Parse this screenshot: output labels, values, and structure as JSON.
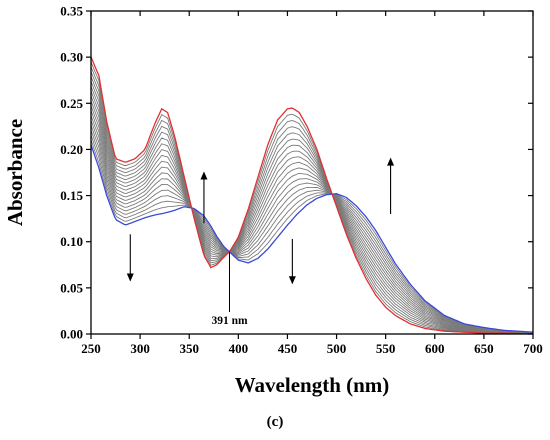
{
  "chart_data": {
    "type": "line",
    "title": "",
    "xlabel": "Wavelength (nm)",
    "ylabel": "Absorbance",
    "xlim": [
      250,
      700
    ],
    "ylim": [
      0.0,
      0.35
    ],
    "xticks": [
      "250",
      "300",
      "350",
      "400",
      "450",
      "500",
      "550",
      "600",
      "650",
      "700"
    ],
    "yticks": [
      "0.00",
      "0.05",
      "0.10",
      "0.15",
      "0.20",
      "0.25",
      "0.30",
      "0.35"
    ],
    "grid": false,
    "legend": "none",
    "series_count": 19,
    "series": [
      {
        "color": "#e03030",
        "x": [
          250,
          258,
          266,
          275,
          285,
          295,
          305,
          315,
          322,
          328,
          335,
          345,
          355,
          365,
          372,
          378,
          385,
          391,
          400,
          410,
          420,
          430,
          440,
          450,
          455,
          462,
          470,
          480,
          490,
          500,
          510,
          520,
          530,
          540,
          550,
          560,
          575,
          590,
          610,
          630,
          650,
          670,
          700
        ],
        "y": [
          0.3,
          0.28,
          0.23,
          0.19,
          0.186,
          0.19,
          0.2,
          0.228,
          0.244,
          0.24,
          0.215,
          0.17,
          0.125,
          0.085,
          0.072,
          0.075,
          0.083,
          0.089,
          0.105,
          0.135,
          0.17,
          0.205,
          0.232,
          0.244,
          0.245,
          0.24,
          0.225,
          0.2,
          0.168,
          0.138,
          0.108,
          0.082,
          0.06,
          0.042,
          0.029,
          0.02,
          0.011,
          0.006,
          0.003,
          0.002,
          0.001,
          0.001,
          0.0
        ]
      },
      {
        "color": "#3a4ad8",
        "x": [
          250,
          258,
          266,
          275,
          285,
          295,
          305,
          315,
          325,
          335,
          345,
          355,
          365,
          372,
          378,
          385,
          391,
          400,
          410,
          420,
          430,
          440,
          450,
          460,
          470,
          480,
          490,
          500,
          510,
          520,
          530,
          540,
          550,
          560,
          575,
          590,
          610,
          630,
          650,
          670,
          700
        ],
        "y": [
          0.205,
          0.18,
          0.15,
          0.124,
          0.118,
          0.122,
          0.126,
          0.129,
          0.131,
          0.134,
          0.138,
          0.136,
          0.128,
          0.117,
          0.106,
          0.095,
          0.089,
          0.08,
          0.077,
          0.082,
          0.092,
          0.105,
          0.118,
          0.13,
          0.14,
          0.147,
          0.151,
          0.152,
          0.148,
          0.139,
          0.127,
          0.112,
          0.094,
          0.076,
          0.054,
          0.036,
          0.02,
          0.011,
          0.007,
          0.004,
          0.002
        ]
      }
    ],
    "annotations": [
      {
        "text": "391 nm",
        "x": 391,
        "y": 0.089
      }
    ],
    "arrows": [
      {
        "x": 290,
        "y_from": 0.108,
        "y_to": 0.058,
        "direction": "down"
      },
      {
        "x": 365,
        "y_from": 0.12,
        "y_to": 0.175,
        "direction": "up"
      },
      {
        "x": 455,
        "y_from": 0.103,
        "y_to": 0.055,
        "direction": "down"
      },
      {
        "x": 555,
        "y_from": 0.13,
        "y_to": 0.19,
        "direction": "up"
      }
    ],
    "panel_label": "(c)"
  }
}
